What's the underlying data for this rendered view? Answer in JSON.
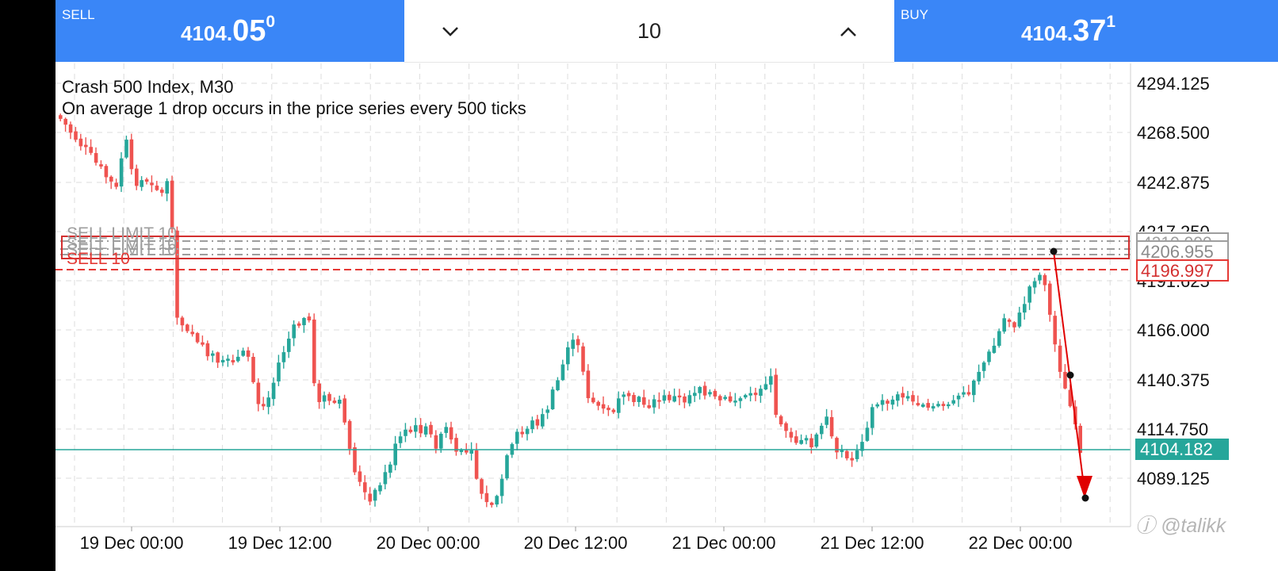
{
  "trade_panel": {
    "sell": {
      "label": "SELL",
      "price_main": "4104.",
      "price_big": "05",
      "price_sup": "0"
    },
    "volume": "10",
    "buy": {
      "label": "BUY",
      "price_main": "4104.",
      "price_big": "37",
      "price_sup": "1"
    }
  },
  "chart": {
    "symbol_title": "Crash 500 Index, M30",
    "description": "On average 1 drop occurs in the price series every 500 ticks",
    "price_axis_ticks": [
      "4294.125",
      "4268.500",
      "4242.875",
      "4217.250",
      "4191.625",
      "4166.000",
      "4140.375",
      "4114.750",
      "4089.125"
    ],
    "time_axis_ticks": [
      "19 Dec 00:00",
      "19 Dec 12:00",
      "20 Dec 00:00",
      "20 Dec 12:00",
      "21 Dec 00:00",
      "21 Dec 12:00",
      "22 Dec 00:00"
    ],
    "bid_label": "4104.182",
    "order_lines": {
      "sell_limit_labels": [
        "SELL LIMIT 10",
        "SELL LIMIT 10",
        "SELL LIMIT 10"
      ],
      "sell_label": "SELL 10",
      "price_labels": [
        "4210.000",
        "4206.955",
        "4196.997"
      ]
    },
    "colors": {
      "bull": "#26a69a",
      "bear": "#ef5350",
      "order": "#d32f2f",
      "limit": "#9e9e9e",
      "arrow": "#e00000",
      "trade_bar": "#3a86f7"
    }
  },
  "watermark": "@talikk"
}
